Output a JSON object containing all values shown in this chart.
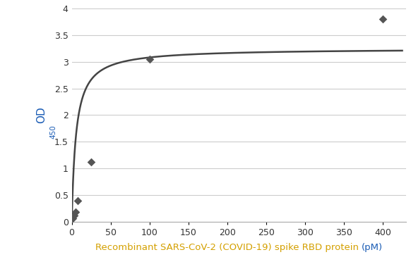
{
  "scatter_x": [
    1,
    3,
    5,
    8,
    25,
    100,
    400
  ],
  "scatter_y": [
    0.07,
    0.12,
    0.18,
    0.4,
    1.12,
    3.05,
    3.8
  ],
  "curve_params": {
    "Bmax": 3.25,
    "Kd": 5.5
  },
  "xlim": [
    0,
    430
  ],
  "ylim": [
    0,
    4.0
  ],
  "xticks": [
    0,
    50,
    100,
    150,
    200,
    250,
    300,
    350,
    400
  ],
  "yticks": [
    0,
    0.5,
    1,
    1.5,
    2,
    2.5,
    3,
    3.5,
    4
  ],
  "ytick_labels": [
    "0",
    "0.5",
    "1",
    "1.5",
    "2",
    "2.5",
    "3",
    "3.5",
    "4"
  ],
  "xlabel_part1": "Recombinant SARS-CoV-2 (COVID-19) spike RBD protein ",
  "xlabel_part2": "(pM)",
  "xlabel_color1": "#d4a000",
  "xlabel_color2": "#1a5cb5",
  "ylabel_main": "OD",
  "ylabel_sub": "450",
  "ylabel_color": "#1a5cb5",
  "scatter_color": "#555555",
  "curve_color": "#444444",
  "grid_color": "#cccccc",
  "background_color": "#ffffff",
  "figsize": [
    5.82,
    3.82
  ],
  "dpi": 100
}
